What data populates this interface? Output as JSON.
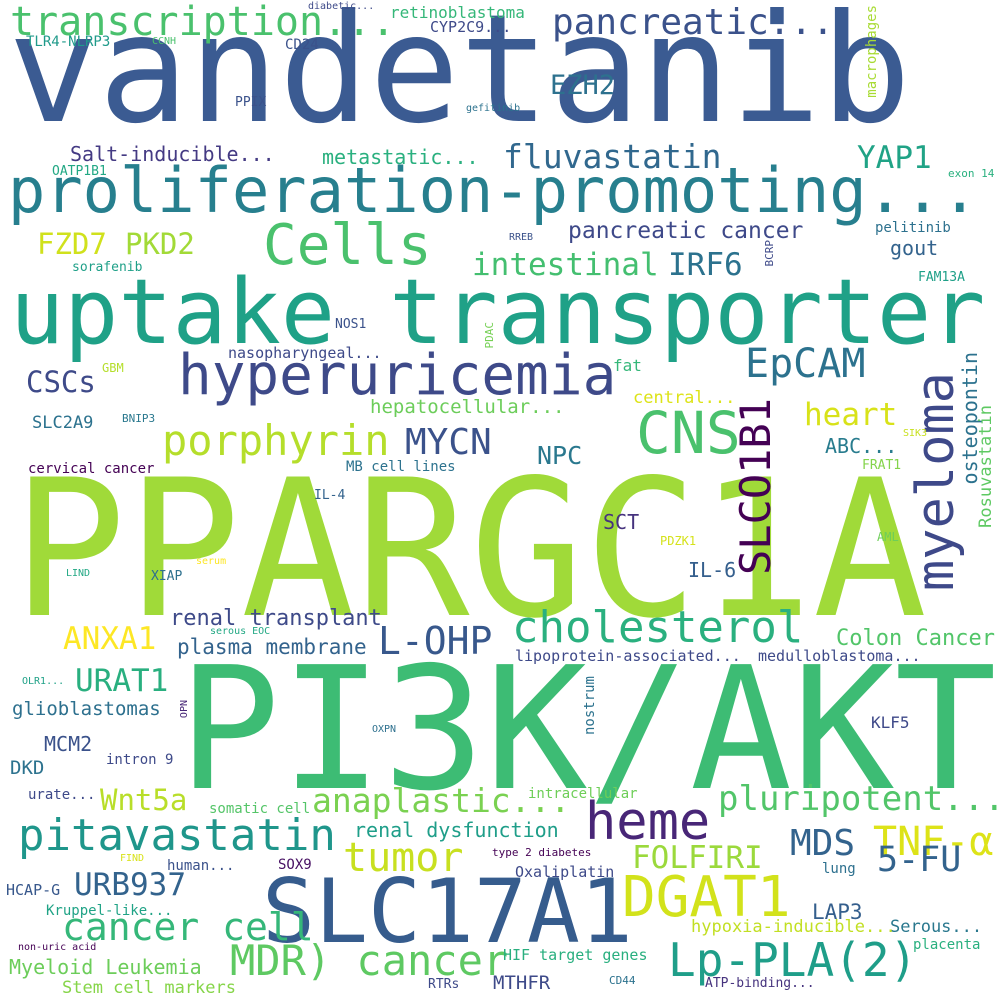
{
  "words": [
    {
      "text": "vandetanib",
      "color": "#3b5b92"
    },
    {
      "text": "PPARGC1A",
      "color": "#a0da39"
    },
    {
      "text": "PI3K/AKT",
      "color": "#3dbc74"
    },
    {
      "text": "uptake transporter",
      "color": "#1fa187"
    },
    {
      "text": "proliferation-promoting...",
      "color": "#277f8e"
    },
    {
      "text": "SLC17A1",
      "color": "#365c8d"
    },
    {
      "text": "hyperuricemia",
      "color": "#3e4a89"
    },
    {
      "text": "transcription...",
      "color": "#4ac16d"
    },
    {
      "text": "pancreatic...",
      "color": "#3b528b"
    },
    {
      "text": "Cells",
      "color": "#4ac16d"
    },
    {
      "text": "CNS",
      "color": "#4ac16d"
    },
    {
      "text": "myeloma",
      "color": "#3e4989"
    },
    {
      "text": "heme",
      "color": "#482677"
    },
    {
      "text": "DGAT1",
      "color": "#d2e21b"
    },
    {
      "text": "Lp-PLA(2)",
      "color": "#1f9e89"
    },
    {
      "text": "cholesterol",
      "color": "#2ab07f"
    },
    {
      "text": "pitavastatin",
      "color": "#1f968b"
    },
    {
      "text": "MDR) cancer",
      "color": "#5ec962"
    },
    {
      "text": "tumor",
      "color": "#c8e020"
    },
    {
      "text": "porphyrin",
      "color": "#b5de2b"
    },
    {
      "text": "SLCO1B1",
      "color": "#440154"
    },
    {
      "text": "EpCAM",
      "color": "#2c728e"
    },
    {
      "text": "fluvastatin",
      "color": "#31688e"
    },
    {
      "text": "MYCN",
      "color": "#3b528b"
    },
    {
      "text": "cancer cell",
      "color": "#35b779"
    },
    {
      "text": "pluripotent...",
      "color": "#52c569"
    },
    {
      "text": "TNF-α",
      "color": "#dde318"
    },
    {
      "text": "anaplastic...",
      "color": "#7ad151"
    },
    {
      "text": "L-OHP",
      "color": "#38588c"
    },
    {
      "text": "5-FU",
      "color": "#33638d"
    },
    {
      "text": "URB937",
      "color": "#33638d"
    },
    {
      "text": "MDS",
      "color": "#33638d"
    },
    {
      "text": "FOLFIRI",
      "color": "#9bd93c"
    },
    {
      "text": "ANXA1",
      "color": "#fde725"
    },
    {
      "text": "URAT1",
      "color": "#29af7f"
    },
    {
      "text": "heart",
      "color": "#d8e219"
    },
    {
      "text": "YAP1",
      "color": "#20a386"
    },
    {
      "text": "IRF6",
      "color": "#2c728e"
    },
    {
      "text": "intestinal",
      "color": "#44bf70"
    },
    {
      "text": "FZD7",
      "color": "#d0e11c"
    },
    {
      "text": "PKD2",
      "color": "#a2da37"
    },
    {
      "text": "CSCs",
      "color": "#3e4a89"
    },
    {
      "text": "EZH2",
      "color": "#2d718e"
    },
    {
      "text": "NPC",
      "color": "#2a788e"
    },
    {
      "text": "Wnt5a",
      "color": "#b8de29"
    },
    {
      "text": "pancreatic cancer",
      "color": "#3e4989"
    },
    {
      "text": "Salt-inducible...",
      "color": "#443a83"
    },
    {
      "text": "metastatic...",
      "color": "#2ab07f"
    },
    {
      "text": "osteopontin",
      "color": "#2c728e"
    },
    {
      "text": "Rosuvastatin",
      "color": "#5ec962"
    },
    {
      "text": "Colon Cancer",
      "color": "#52c569"
    },
    {
      "text": "renal transplant",
      "color": "#3e4a89"
    },
    {
      "text": "plasma membrane",
      "color": "#33638d"
    },
    {
      "text": "renal dysfunction",
      "color": "#1f9e89"
    },
    {
      "text": "LAP3",
      "color": "#355f8d"
    },
    {
      "text": "Myeloid Leukemia",
      "color": "#6ccd5a"
    },
    {
      "text": "Stem cell markers",
      "color": "#86d549"
    },
    {
      "text": "glioblastomas",
      "color": "#2d708e"
    },
    {
      "text": "hepatocellular...",
      "color": "#6ccd5a"
    },
    {
      "text": "retinoblastoma",
      "color": "#35b779"
    },
    {
      "text": "IL-6",
      "color": "#355f8d"
    },
    {
      "text": "SCT",
      "color": "#46337e"
    },
    {
      "text": "MCM2",
      "color": "#3b528b"
    },
    {
      "text": "DKD",
      "color": "#2c728e"
    },
    {
      "text": "MTHFR",
      "color": "#3e4a89"
    },
    {
      "text": "gout",
      "color": "#33638d"
    },
    {
      "text": "ABC...",
      "color": "#287c8e"
    },
    {
      "text": "central...",
      "color": "#dde318"
    },
    {
      "text": "SLC2A9",
      "color": "#2c728e"
    },
    {
      "text": "Serous...",
      "color": "#2a788e"
    },
    {
      "text": "hypoxia-inducible...",
      "color": "#c2df23"
    },
    {
      "text": "HIF target genes",
      "color": "#29af7f"
    },
    {
      "text": "Oxaliplatin",
      "color": "#3e4a89"
    },
    {
      "text": "KLF5",
      "color": "#3e4989"
    },
    {
      "text": "Kruppel-like...",
      "color": "#20a386"
    },
    {
      "text": "nasopharyngeal...",
      "color": "#3e4a89"
    },
    {
      "text": "lipoprotein-associated...",
      "color": "#3e4989"
    },
    {
      "text": "medulloblastoma...",
      "color": "#3e4a89"
    },
    {
      "text": "intracellular",
      "color": "#6ece58"
    },
    {
      "text": "macrophages",
      "color": "#a8db34"
    },
    {
      "text": "nostrum",
      "color": "#2c728e"
    },
    {
      "text": "fat",
      "color": "#35b779"
    },
    {
      "text": "HCAP-G",
      "color": "#38588c"
    },
    {
      "text": "CD24",
      "color": "#3b528b"
    },
    {
      "text": "TLR4-NLRP3",
      "color": "#1f9a8a"
    },
    {
      "text": "CYP2C9...",
      "color": "#3e4a89"
    },
    {
      "text": "somatic cell",
      "color": "#54c568"
    },
    {
      "text": "urate...",
      "color": "#3e4989"
    },
    {
      "text": "intron 9",
      "color": "#3e4a89"
    },
    {
      "text": "human...",
      "color": "#3b528b"
    },
    {
      "text": "SOX9",
      "color": "#471063"
    },
    {
      "text": "placenta",
      "color": "#2ab07f"
    },
    {
      "text": "lung",
      "color": "#2d708e"
    },
    {
      "text": "FRAT1",
      "color": "#84d44b"
    },
    {
      "text": "cervical cancer",
      "color": "#440154"
    },
    {
      "text": "MB cell lines",
      "color": "#2c728e"
    },
    {
      "text": "pelitinib",
      "color": "#2d718e"
    },
    {
      "text": "FAM13A",
      "color": "#1fa088"
    },
    {
      "text": "sorafenib",
      "color": "#1fa088"
    },
    {
      "text": "NOS1",
      "color": "#3b528b"
    },
    {
      "text": "PPIX",
      "color": "#3b528b"
    },
    {
      "text": "OATP1B1",
      "color": "#22a884"
    },
    {
      "text": "IL-4",
      "color": "#33638d"
    },
    {
      "text": "XIAP",
      "color": "#2d708e"
    },
    {
      "text": "PDZK1",
      "color": "#d5e21a"
    },
    {
      "text": "AML",
      "color": "#6ece58"
    },
    {
      "text": "exon 14",
      "color": "#2ab07f"
    },
    {
      "text": "GBM",
      "color": "#b5de2b"
    },
    {
      "text": "BNIP3",
      "color": "#2a788e"
    },
    {
      "text": "SIK3",
      "color": "#c8e020"
    },
    {
      "text": "ATP-binding...",
      "color": "#46337e"
    },
    {
      "text": "CD44",
      "color": "#2c728e"
    },
    {
      "text": "RTRs",
      "color": "#3e4a89"
    },
    {
      "text": "type 2 diabetes",
      "color": "#440154"
    },
    {
      "text": "FIND",
      "color": "#d8e219"
    },
    {
      "text": "non-uric acid",
      "color": "#440154"
    },
    {
      "text": "OXPN",
      "color": "#2d708e"
    },
    {
      "text": "OPN",
      "color": "#482777"
    },
    {
      "text": "OLR1...",
      "color": "#1fa187"
    },
    {
      "text": "LIND",
      "color": "#22a884"
    },
    {
      "text": "serum",
      "color": "#fde725"
    },
    {
      "text": "serous EOC",
      "color": "#22a884"
    },
    {
      "text": "CCNH",
      "color": "#4ac16d"
    },
    {
      "text": "diabetic...",
      "color": "#3e4a89"
    },
    {
      "text": "gefitinib",
      "color": "#2c728e"
    },
    {
      "text": "RREB",
      "color": "#3b528b"
    },
    {
      "text": "BCRP",
      "color": "#3e4a89"
    },
    {
      "text": "PDAC",
      "color": "#75d054"
    }
  ]
}
